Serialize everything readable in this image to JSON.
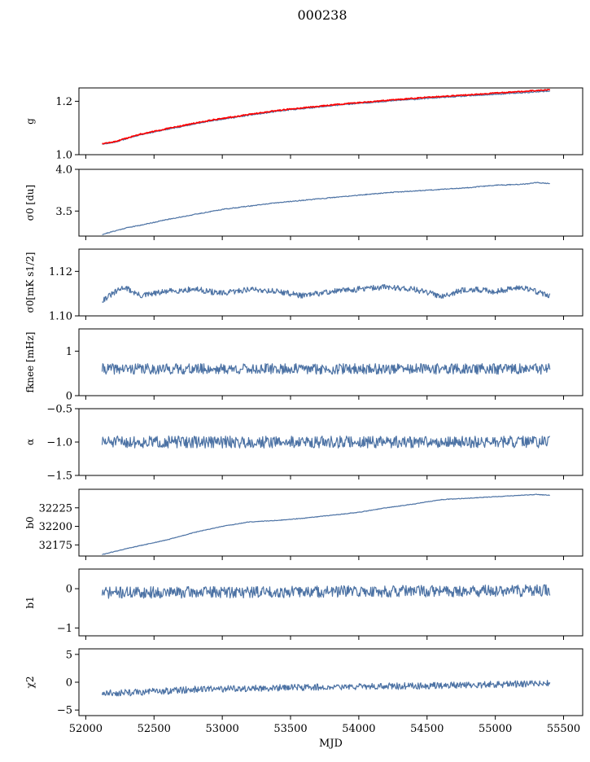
{
  "title": "000238",
  "colors": {
    "series": "#4c72a4",
    "overlay": "#ff0000",
    "axis": "#000000"
  },
  "chart_data": [
    {
      "type": "line",
      "id": "g",
      "ylabel": "g",
      "ylim": [
        1.0,
        1.25
      ],
      "yticks": [
        1.0,
        1.2
      ],
      "ytick_labels": [
        "1.0",
        "1.2"
      ],
      "x": [
        52120,
        52200,
        52300,
        52400,
        52500,
        52600,
        52700,
        52800,
        52900,
        53000,
        53100,
        53200,
        53300,
        53400,
        53500,
        53600,
        53700,
        53800,
        53900,
        54000,
        54100,
        54200,
        54300,
        54400,
        54500,
        54600,
        54700,
        54800,
        54900,
        55000,
        55100,
        55200,
        55300,
        55400
      ],
      "series": [
        {
          "values": [
            1.04,
            1.045,
            1.06,
            1.075,
            1.085,
            1.095,
            1.105,
            1.115,
            1.125,
            1.133,
            1.14,
            1.148,
            1.155,
            1.162,
            1.168,
            1.173,
            1.178,
            1.183,
            1.188,
            1.192,
            1.196,
            1.2,
            1.204,
            1.207,
            1.211,
            1.214,
            1.217,
            1.22,
            1.223,
            1.226,
            1.229,
            1.232,
            1.235,
            1.238
          ],
          "noise": 0.002,
          "seed": 11
        },
        {
          "values": [
            1.042,
            1.047,
            1.062,
            1.077,
            1.087,
            1.098,
            1.108,
            1.118,
            1.128,
            1.136,
            1.143,
            1.151,
            1.158,
            1.165,
            1.171,
            1.176,
            1.181,
            1.186,
            1.191,
            1.195,
            1.199,
            1.203,
            1.207,
            1.211,
            1.215,
            1.218,
            1.221,
            1.224,
            1.227,
            1.231,
            1.234,
            1.237,
            1.24,
            1.243
          ],
          "noise": 0.002,
          "seed": 12,
          "style": "overlay"
        }
      ]
    },
    {
      "type": "line",
      "id": "sigma0_du",
      "ylabel": "σ0 [du]",
      "ylim": [
        3.2,
        4.0
      ],
      "yticks": [
        3.5,
        4.0
      ],
      "ytick_labels": [
        "3.5",
        "4.0"
      ],
      "x": [
        52120,
        52300,
        52400,
        52600,
        52800,
        53000,
        53200,
        53400,
        53600,
        53800,
        54000,
        54200,
        54400,
        54600,
        54800,
        55000,
        55200,
        55300,
        55400
      ],
      "series": [
        {
          "values": [
            3.22,
            3.3,
            3.33,
            3.4,
            3.46,
            3.52,
            3.56,
            3.6,
            3.63,
            3.66,
            3.69,
            3.72,
            3.74,
            3.76,
            3.78,
            3.81,
            3.82,
            3.84,
            3.83
          ],
          "noise": 0.005,
          "seed": 21
        }
      ]
    },
    {
      "type": "line",
      "id": "sigma0_mk",
      "ylabel": "σ0[mK s1/2]",
      "ylim": [
        1.1,
        1.13
      ],
      "yticks": [
        1.1,
        1.12
      ],
      "ytick_labels": [
        "1.10",
        "1.12"
      ],
      "x": [
        52120,
        52280,
        52400,
        52600,
        52800,
        53000,
        53200,
        53400,
        53600,
        53800,
        54000,
        54200,
        54400,
        54600,
        54800,
        55000,
        55200,
        55300,
        55400
      ],
      "series": [
        {
          "values": [
            1.107,
            1.113,
            1.109,
            1.111,
            1.112,
            1.11,
            1.112,
            1.111,
            1.109,
            1.111,
            1.112,
            1.113,
            1.112,
            1.109,
            1.112,
            1.111,
            1.113,
            1.111,
            1.109
          ],
          "noise": 0.0013,
          "seed": 31
        }
      ]
    },
    {
      "type": "line",
      "id": "fknee",
      "ylabel": "fknee [mHz]",
      "ylim": [
        0,
        1.5
      ],
      "yticks": [
        0,
        1
      ],
      "ytick_labels": [
        "0",
        "1"
      ],
      "x": [
        52120,
        55400
      ],
      "mean": 0.6,
      "series": [
        {
          "values": [
            0.6,
            0.6
          ],
          "noise": 0.12,
          "seed": 41
        }
      ]
    },
    {
      "type": "line",
      "id": "alpha",
      "ylabel": "α",
      "ylim": [
        -1.5,
        -0.5
      ],
      "yticks": [
        -1.5,
        -1.0,
        -0.5
      ],
      "ytick_labels": [
        "−1.5",
        "−1.0",
        "−0.5"
      ],
      "x": [
        52120,
        55400
      ],
      "series": [
        {
          "values": [
            -1.0,
            -1.0
          ],
          "noise": 0.09,
          "seed": 51
        }
      ]
    },
    {
      "type": "line",
      "id": "b0",
      "ylabel": "b0",
      "ylim": [
        32160,
        32250
      ],
      "yticks": [
        32175,
        32200,
        32225
      ],
      "ytick_labels": [
        "32175",
        "32200",
        "32225"
      ],
      "x": [
        52120,
        52300,
        52600,
        52800,
        53000,
        53200,
        53400,
        53600,
        53800,
        54000,
        54200,
        54400,
        54600,
        54800,
        55000,
        55200,
        55300,
        55400
      ],
      "series": [
        {
          "values": [
            32162,
            32170,
            32182,
            32192,
            32200,
            32206,
            32208,
            32211,
            32215,
            32219,
            32225,
            32230,
            32236,
            32238,
            32240,
            32242,
            32243,
            32242
          ],
          "noise": 0.4,
          "seed": 61
        }
      ]
    },
    {
      "type": "line",
      "id": "b1",
      "ylabel": "b1",
      "ylim": [
        -1.2,
        0.5
      ],
      "yticks": [
        -1,
        0
      ],
      "ytick_labels": [
        "−1",
        "0"
      ],
      "x": [
        52120,
        55400
      ],
      "series": [
        {
          "values": [
            -0.1,
            -0.05
          ],
          "noise": 0.15,
          "seed": 71
        }
      ]
    },
    {
      "type": "line",
      "id": "chi2",
      "ylabel": "χ2",
      "ylim": [
        -6,
        6
      ],
      "yticks": [
        -5,
        0,
        5
      ],
      "ytick_labels": [
        "−5",
        "0",
        "5"
      ],
      "xticks": [
        52000,
        52500,
        53000,
        53500,
        54000,
        54500,
        55000,
        55500
      ],
      "xtick_labels": [
        "52000",
        "52500",
        "53000",
        "53500",
        "54000",
        "54500",
        "55000",
        "55500"
      ],
      "xlabel": "MJD",
      "x": [
        52120,
        52400,
        52800,
        53400,
        54000,
        54600,
        55000,
        55400
      ],
      "series": [
        {
          "values": [
            -2.0,
            -1.8,
            -1.3,
            -1.0,
            -0.8,
            -0.6,
            -0.4,
            -0.2
          ],
          "noise": 0.6,
          "seed": 81
        }
      ]
    }
  ]
}
